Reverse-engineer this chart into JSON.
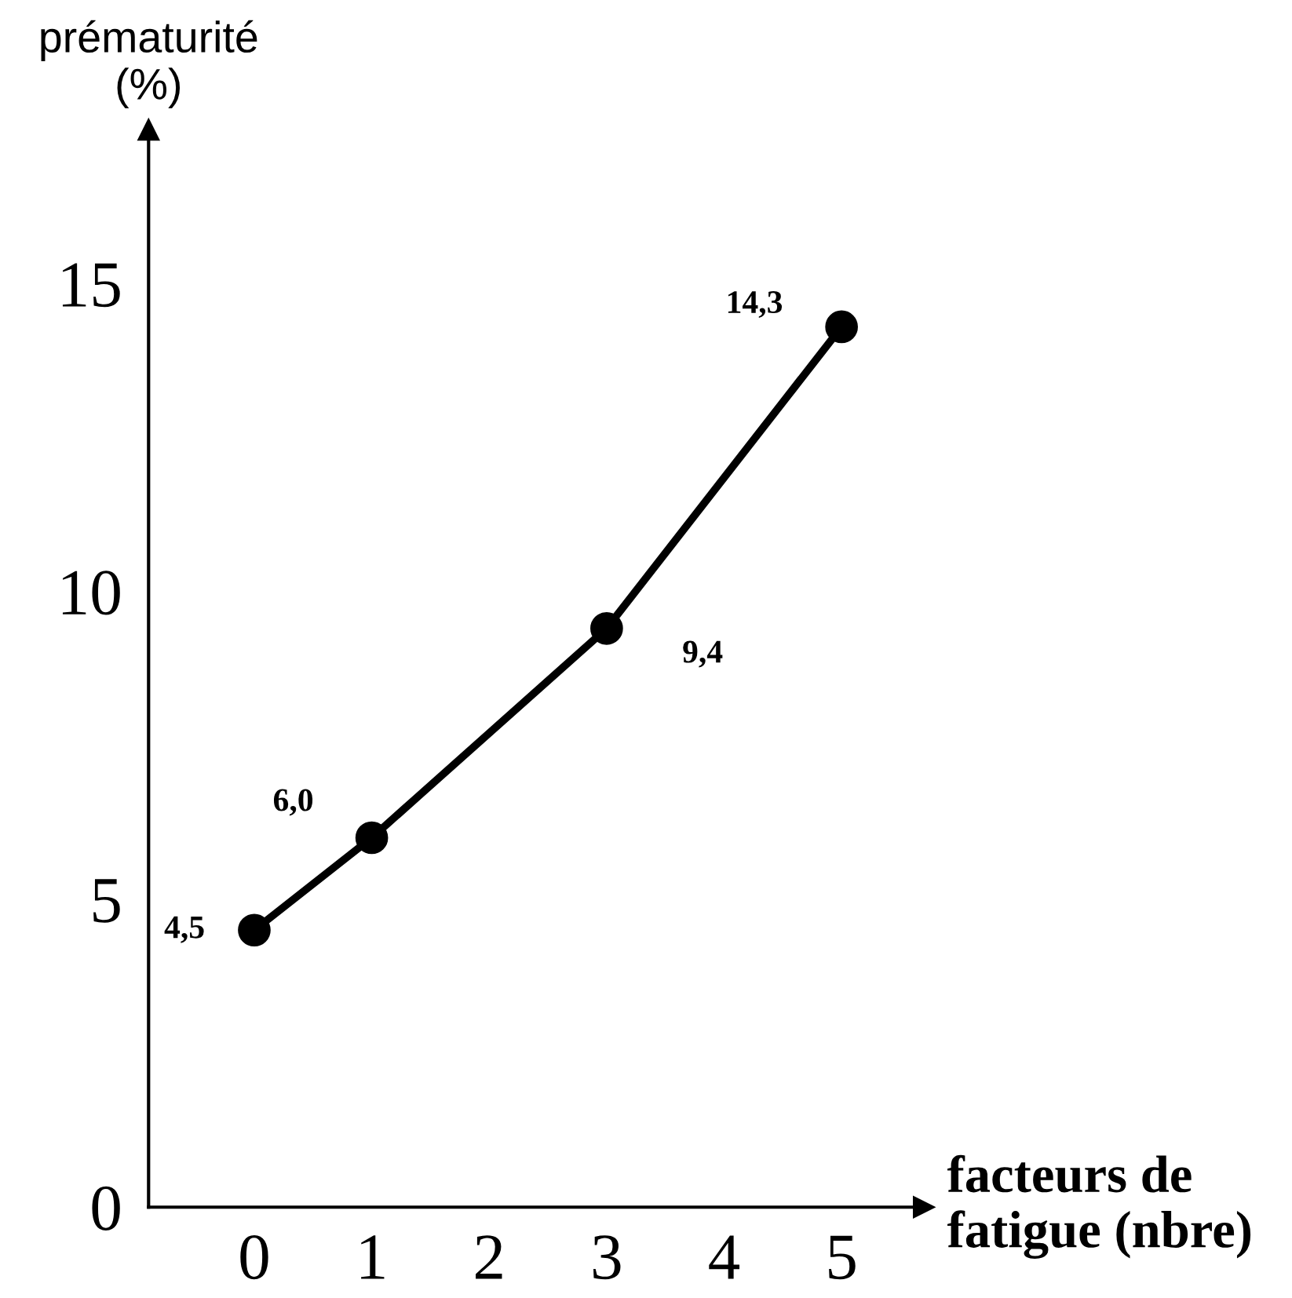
{
  "chart_data": {
    "type": "line",
    "xlabel": "facteurs de\nfatigue (nbre)",
    "ylabel": "prématurité\n(%)",
    "x": [
      0,
      1,
      3,
      5
    ],
    "series": [
      {
        "color": "#000000",
        "values": [
          4.5,
          6.0,
          9.4,
          14.3
        ],
        "value_labels": [
          "4,5",
          "6,0",
          "9,4",
          "14,3"
        ]
      }
    ],
    "xlim": [
      -0.9,
      5.7
    ],
    "ylim": [
      0,
      17.5
    ],
    "xticks": [
      0,
      1,
      2,
      3,
      4,
      5
    ],
    "yticks": [
      0,
      5,
      10,
      15
    ],
    "marker": "circle",
    "line_style": "solid",
    "grid": false,
    "legend": false
  }
}
